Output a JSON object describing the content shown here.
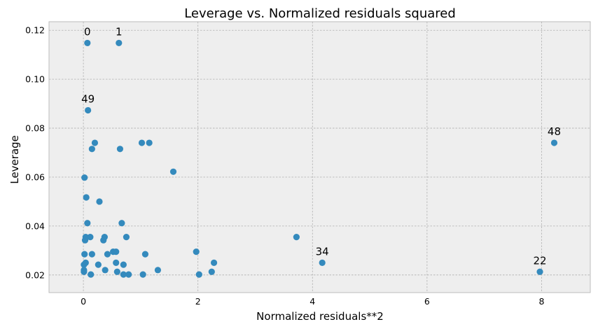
{
  "chart_data": {
    "type": "scatter",
    "title": "Leverage vs. Normalized residuals squared",
    "xlabel": "Normalized residuals**2",
    "ylabel": "Leverage",
    "xlim": [
      -0.6,
      8.85
    ],
    "ylim": [
      0.0128,
      0.1235
    ],
    "xticks": [
      0,
      2,
      4,
      6,
      8
    ],
    "yticks": [
      0.02,
      0.04,
      0.06,
      0.08,
      0.1,
      0.12
    ],
    "xtick_labels": [
      "0",
      "2",
      "4",
      "6",
      "8"
    ],
    "ytick_labels": [
      "0.02",
      "0.04",
      "0.06",
      "0.08",
      "0.10",
      "0.12"
    ],
    "grid": true,
    "color": "#348ABD",
    "background": "#EEEEEE",
    "points": [
      {
        "x": 0.07,
        "y": 0.1148
      },
      {
        "x": 0.62,
        "y": 0.1148
      },
      {
        "x": 0.08,
        "y": 0.0873
      },
      {
        "x": 0.2,
        "y": 0.074
      },
      {
        "x": 0.15,
        "y": 0.0715
      },
      {
        "x": 0.64,
        "y": 0.0715
      },
      {
        "x": 1.02,
        "y": 0.074
      },
      {
        "x": 1.15,
        "y": 0.074
      },
      {
        "x": 8.22,
        "y": 0.074
      },
      {
        "x": 1.57,
        "y": 0.0622
      },
      {
        "x": 0.02,
        "y": 0.0598
      },
      {
        "x": 0.05,
        "y": 0.0517
      },
      {
        "x": 0.28,
        "y": 0.05
      },
      {
        "x": 0.07,
        "y": 0.0412
      },
      {
        "x": 0.67,
        "y": 0.0412
      },
      {
        "x": 0.04,
        "y": 0.0355
      },
      {
        "x": 0.12,
        "y": 0.0355
      },
      {
        "x": 0.37,
        "y": 0.0355
      },
      {
        "x": 0.75,
        "y": 0.0355
      },
      {
        "x": 3.72,
        "y": 0.0355
      },
      {
        "x": 0.03,
        "y": 0.0342
      },
      {
        "x": 0.35,
        "y": 0.0342
      },
      {
        "x": 0.52,
        "y": 0.0295
      },
      {
        "x": 0.57,
        "y": 0.0295
      },
      {
        "x": 1.97,
        "y": 0.0295
      },
      {
        "x": 0.02,
        "y": 0.0285
      },
      {
        "x": 0.15,
        "y": 0.0285
      },
      {
        "x": 0.42,
        "y": 0.0285
      },
      {
        "x": 1.08,
        "y": 0.0285
      },
      {
        "x": 0.04,
        "y": 0.025
      },
      {
        "x": 0.57,
        "y": 0.025
      },
      {
        "x": 2.28,
        "y": 0.025
      },
      {
        "x": 4.17,
        "y": 0.025
      },
      {
        "x": 0.01,
        "y": 0.0242
      },
      {
        "x": 0.26,
        "y": 0.0242
      },
      {
        "x": 0.7,
        "y": 0.0242
      },
      {
        "x": 0.01,
        "y": 0.022
      },
      {
        "x": 0.38,
        "y": 0.022
      },
      {
        "x": 1.3,
        "y": 0.022
      },
      {
        "x": 0.01,
        "y": 0.0213
      },
      {
        "x": 0.59,
        "y": 0.0213
      },
      {
        "x": 2.24,
        "y": 0.0213
      },
      {
        "x": 7.97,
        "y": 0.0213
      },
      {
        "x": 0.13,
        "y": 0.0202
      },
      {
        "x": 0.7,
        "y": 0.0202
      },
      {
        "x": 0.79,
        "y": 0.0202
      },
      {
        "x": 1.04,
        "y": 0.0202
      },
      {
        "x": 2.02,
        "y": 0.0202
      }
    ],
    "annotations": [
      {
        "text": "0",
        "x": 0.07,
        "y": 0.1148
      },
      {
        "text": "1",
        "x": 0.62,
        "y": 0.1148
      },
      {
        "text": "49",
        "x": 0.08,
        "y": 0.0873
      },
      {
        "text": "48",
        "x": 8.22,
        "y": 0.074
      },
      {
        "text": "34",
        "x": 4.17,
        "y": 0.025
      },
      {
        "text": "22",
        "x": 7.97,
        "y": 0.0213
      }
    ]
  }
}
